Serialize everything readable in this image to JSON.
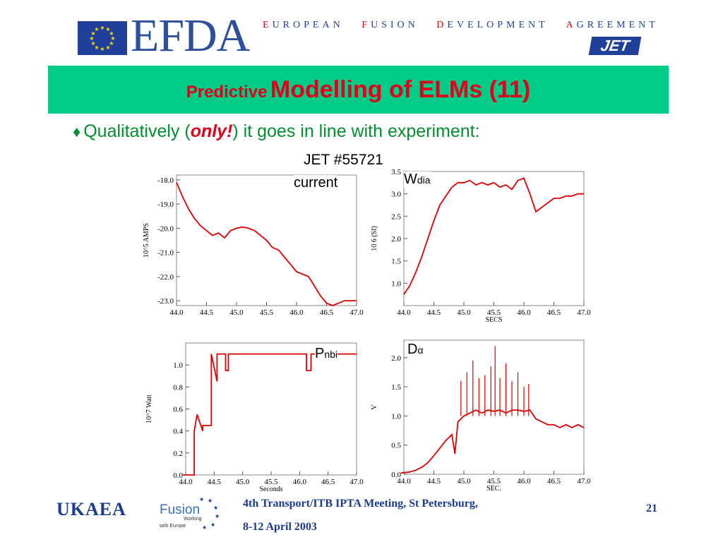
{
  "header": {
    "logo_text": "EFDA",
    "agreement": [
      {
        "cap": "E",
        "rest": "UROPEAN"
      },
      {
        "cap": "F",
        "rest": "USION"
      },
      {
        "cap": "D",
        "rest": "EVELOPMENT"
      },
      {
        "cap": "A",
        "rest": "GREEMENT"
      }
    ],
    "jet_logo": "JET"
  },
  "title": {
    "part1": "Predictive",
    "part2": "Modelling of ELMs (11)"
  },
  "bullet": {
    "before": "Qualitatively (",
    "emph": "only!",
    "after": ") it goes in line with experiment:"
  },
  "shot_label": "JET #55721",
  "colors": {
    "title_bar": "#00cc88",
    "title_text": "#e0001b",
    "bullet_text": "#00902e",
    "trace": "#e00000",
    "footer_text": "#1a3b8f"
  },
  "chart_data": [
    {
      "type": "line",
      "label_main": "current",
      "ylabel": "10^5 AMPS",
      "xlabel": "",
      "xlim": [
        44.0,
        47.0
      ],
      "ylim": [
        -23.2,
        -17.8
      ],
      "xticks": [
        "44.0",
        "44.5",
        "45.0",
        "45.5",
        "46.0",
        "46.5",
        "47.0"
      ],
      "yticks": [
        -18.0,
        -19.0,
        -20.0,
        -21.0,
        -22.0,
        -23.0
      ],
      "x": [
        44.0,
        44.1,
        44.2,
        44.3,
        44.4,
        44.5,
        44.6,
        44.7,
        44.8,
        44.9,
        45.0,
        45.1,
        45.2,
        45.3,
        45.4,
        45.5,
        45.6,
        45.7,
        45.8,
        45.9,
        46.0,
        46.1,
        46.2,
        46.3,
        46.4,
        46.5,
        46.6,
        46.7,
        46.8,
        46.9,
        47.0
      ],
      "series": [
        {
          "values": [
            -18.1,
            -18.7,
            -19.2,
            -19.6,
            -19.9,
            -20.1,
            -20.3,
            -20.2,
            -20.4,
            -20.1,
            -20.0,
            -19.95,
            -20.0,
            -20.1,
            -20.3,
            -20.5,
            -20.8,
            -20.9,
            -21.2,
            -21.5,
            -21.8,
            -21.9,
            -22.0,
            -22.4,
            -22.8,
            -23.1,
            -23.2,
            -23.1,
            -23.0,
            -23.0,
            -23.0
          ]
        }
      ]
    },
    {
      "type": "line",
      "label_main": "W",
      "label_sub": "dia",
      "ylabel": "10 6 (SI)",
      "xlabel": "SECS",
      "xlim": [
        44.0,
        47.0
      ],
      "ylim": [
        0.5,
        3.5
      ],
      "xticks": [
        "44.0",
        "44.5",
        "45.0",
        "45.5",
        "46.0",
        "46.5",
        "47.0"
      ],
      "yticks": [
        1.0,
        1.5,
        2.0,
        2.5,
        3.0,
        3.5
      ],
      "x": [
        44.0,
        44.1,
        44.2,
        44.3,
        44.4,
        44.5,
        44.6,
        44.7,
        44.8,
        44.9,
        45.0,
        45.1,
        45.2,
        45.3,
        45.4,
        45.5,
        45.6,
        45.7,
        45.8,
        45.9,
        46.0,
        46.1,
        46.2,
        46.3,
        46.4,
        46.5,
        46.6,
        46.7,
        46.8,
        46.9,
        47.0
      ],
      "series": [
        {
          "values": [
            0.75,
            0.95,
            1.25,
            1.6,
            2.0,
            2.4,
            2.75,
            2.95,
            3.15,
            3.25,
            3.25,
            3.3,
            3.2,
            3.25,
            3.2,
            3.25,
            3.15,
            3.2,
            3.1,
            3.3,
            3.35,
            3.0,
            2.6,
            2.7,
            2.8,
            2.9,
            2.9,
            2.95,
            2.95,
            3.0,
            3.0
          ]
        }
      ]
    },
    {
      "type": "line",
      "label_main": "P",
      "label_sub": "nbi",
      "ylabel": "10^7 Watt",
      "xlabel": "Seconds",
      "xlim": [
        44.0,
        47.0
      ],
      "ylim": [
        0.0,
        1.2
      ],
      "xticks": [
        "44.0",
        "44.5",
        "45.0",
        "45.5",
        "46.0",
        "46.5",
        "47.0"
      ],
      "yticks": [
        0.0,
        0.2,
        0.4,
        0.6,
        0.8,
        1.0
      ],
      "x": [
        43.95,
        44.15,
        44.15,
        44.2,
        44.3,
        44.3,
        44.45,
        44.45,
        44.55,
        44.55,
        44.7,
        44.7,
        44.75,
        44.75,
        46.12,
        46.12,
        46.2,
        46.2,
        47.0
      ],
      "series": [
        {
          "values": [
            0.0,
            0.0,
            0.4,
            0.55,
            0.4,
            0.45,
            0.45,
            1.1,
            0.85,
            1.1,
            1.1,
            0.95,
            0.95,
            1.1,
            1.1,
            0.95,
            0.95,
            1.1,
            1.1
          ]
        }
      ]
    },
    {
      "type": "line",
      "label_main": "D",
      "label_sub": "α",
      "ylabel": "V",
      "xlabel": "SEC.",
      "xlim": [
        44.0,
        47.0
      ],
      "ylim": [
        0.0,
        2.3
      ],
      "xticks": [
        "44.0",
        "44.5",
        "45.0",
        "45.5",
        "46.0",
        "46.5",
        "47.0"
      ],
      "yticks": [
        0.0,
        0.5,
        1.0,
        1.5,
        2.0
      ],
      "x": [
        43.95,
        44.1,
        44.2,
        44.3,
        44.4,
        44.5,
        44.6,
        44.7,
        44.8,
        44.85,
        44.9,
        45.0,
        45.1,
        45.2,
        45.3,
        45.4,
        45.5,
        45.6,
        45.7,
        45.8,
        45.9,
        46.0,
        46.1,
        46.2,
        46.3,
        46.4,
        46.5,
        46.6,
        46.7,
        46.8,
        46.9,
        47.0
      ],
      "series": [
        {
          "values": [
            0.02,
            0.04,
            0.07,
            0.12,
            0.2,
            0.32,
            0.45,
            0.58,
            0.68,
            0.35,
            0.9,
            1.0,
            1.05,
            1.1,
            1.05,
            1.1,
            1.08,
            1.1,
            1.05,
            1.1,
            1.1,
            1.08,
            1.1,
            0.95,
            0.9,
            0.85,
            0.85,
            0.8,
            0.85,
            0.8,
            0.85,
            0.8
          ]
        }
      ],
      "spikes": [
        [
          44.95,
          1.6
        ],
        [
          45.05,
          1.75
        ],
        [
          45.15,
          1.95
        ],
        [
          45.25,
          1.65
        ],
        [
          45.35,
          1.7
        ],
        [
          45.45,
          1.85
        ],
        [
          45.52,
          2.2
        ],
        [
          45.6,
          1.65
        ],
        [
          45.7,
          1.9
        ],
        [
          45.8,
          1.6
        ],
        [
          45.9,
          1.75
        ],
        [
          46.0,
          1.5
        ],
        [
          46.08,
          1.55
        ]
      ]
    }
  ],
  "footer": {
    "ukaea": "UKAEA",
    "fusion": "Fusion",
    "fusion_sub1": "Working",
    "fusion_sub2": "with Europe",
    "meeting_line1": "4th Transport/ITB IPTA Meeting, St Petersburg,",
    "meeting_line2": "8-12 April 2003",
    "page": "21"
  }
}
